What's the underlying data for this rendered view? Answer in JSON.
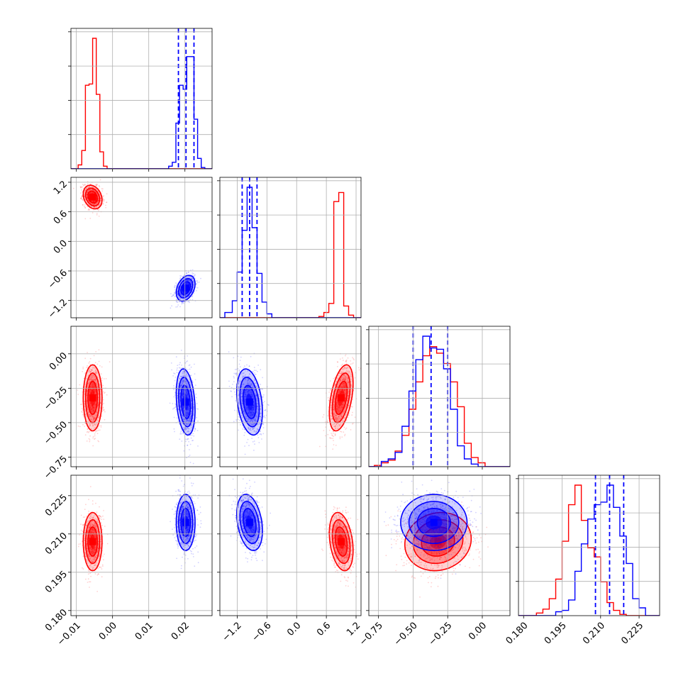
{
  "figure": {
    "type": "corner-plot"
  },
  "chart_data": {
    "type": "corner",
    "parameters": [
      {
        "key": "p1",
        "range": [
          -0.0115,
          0.0275
        ],
        "ticks": [
          -0.01,
          0.0,
          0.01,
          0.02
        ],
        "tick_labels": [
          "−0.01",
          "0.00",
          "0.01",
          "0.02"
        ]
      },
      {
        "key": "p2",
        "range": [
          -1.55,
          1.3
        ],
        "ticks": [
          -1.2,
          -0.6,
          0.0,
          0.6,
          1.2
        ],
        "tick_labels": [
          "−1.2",
          "−0.6",
          "0.0",
          "0.6",
          "1.2"
        ]
      },
      {
        "key": "p3",
        "range": [
          -0.82,
          0.2
        ],
        "ticks": [
          -0.75,
          -0.5,
          -0.25,
          0.0
        ],
        "tick_labels": [
          "−0.75",
          "−0.50",
          "−0.25",
          "0.00"
        ]
      },
      {
        "key": "p4",
        "range": [
          0.178,
          0.233
        ],
        "ticks": [
          0.18,
          0.195,
          0.21,
          0.225
        ],
        "tick_labels": [
          "0.180",
          "0.195",
          "0.210",
          "0.225"
        ]
      }
    ],
    "series": [
      {
        "color": "#ff0000",
        "mean": [
          -0.0055,
          0.9,
          -0.32,
          0.207
        ],
        "sd": [
          0.0013,
          0.12,
          0.12,
          0.0057
        ],
        "corr": [
          [
            0,
            1,
            -0.25
          ],
          [
            0,
            2,
            0
          ],
          [
            0,
            3,
            0
          ],
          [
            1,
            2,
            0.45
          ],
          [
            1,
            3,
            -0.3
          ],
          [
            2,
            3,
            0.1
          ]
        ],
        "histograms": [
          {
            "edges": [
              -0.0115,
              -0.0095,
              -0.0085,
              -0.0075,
              -0.0065,
              -0.0055,
              -0.0045,
              -0.0035,
              -0.0025,
              -0.0015,
              0.0275
            ],
            "counts": [
              0,
              0.03,
              0.14,
              0.64,
              0.65,
              1.0,
              0.57,
              0.13,
              0.02,
              0
            ]
          },
          {
            "edges": [
              -1.55,
              0.45,
              0.55,
              0.65,
              0.75,
              0.85,
              0.95,
              1.05,
              1.15,
              1.3
            ],
            "counts": [
              0,
              0.01,
              0.04,
              0.11,
              0.89,
              0.96,
              0.09,
              0.02,
              0
            ]
          },
          {
            "edges": [
              -0.82,
              -0.78,
              -0.73,
              -0.68,
              -0.63,
              -0.58,
              -0.53,
              -0.48,
              -0.43,
              -0.38,
              -0.33,
              -0.28,
              -0.23,
              -0.18,
              -0.13,
              -0.08,
              -0.03,
              0.02,
              0.2
            ],
            "counts": [
              0,
              0.01,
              0.03,
              0.05,
              0.12,
              0.24,
              0.44,
              0.65,
              0.85,
              0.92,
              0.87,
              0.79,
              0.65,
              0.46,
              0.18,
              0.07,
              0.03,
              0
            ]
          },
          {
            "edges": [
              0.178,
              0.185,
              0.1875,
              0.19,
              0.1925,
              0.195,
              0.1975,
              0.2,
              0.2025,
              0.205,
              0.2075,
              0.21,
              0.2125,
              0.215,
              0.2175,
              0.22,
              0.2225,
              0.233
            ],
            "counts": [
              0,
              0.02,
              0.05,
              0.13,
              0.28,
              0.57,
              0.85,
              1.0,
              0.73,
              0.52,
              0.45,
              0.26,
              0.1,
              0.04,
              0.01,
              0,
              0
            ]
          }
        ]
      },
      {
        "color": "#0000ff",
        "mean": [
          0.0202,
          -0.95,
          -0.35,
          0.2145
        ],
        "sd": [
          0.0013,
          0.13,
          0.12,
          0.0055
        ],
        "corr": [
          [
            0,
            1,
            0.35
          ],
          [
            0,
            2,
            -0.25
          ],
          [
            0,
            3,
            0
          ],
          [
            1,
            2,
            -0.3
          ],
          [
            1,
            3,
            -0.3
          ],
          [
            2,
            3,
            0
          ]
        ],
        "histograms": [
          {
            "edges": [
              -0.0115,
              0.0155,
              0.0165,
              0.0175,
              0.0185,
              0.0195,
              0.0205,
              0.0215,
              0.0225,
              0.0235,
              0.0245,
              0.0255,
              0.0275
            ],
            "counts": [
              0,
              0.02,
              0.05,
              0.35,
              0.64,
              0.61,
              0.86,
              0.86,
              0.38,
              0.08,
              0.01,
              0
            ]
          },
          {
            "edges": [
              -1.55,
              -1.45,
              -1.3,
              -1.2,
              -1.1,
              -1.0,
              -0.9,
              -0.8,
              -0.7,
              -0.6,
              -0.5,
              1.3
            ],
            "counts": [
              0,
              0.04,
              0.13,
              0.35,
              0.67,
              1.0,
              0.69,
              0.34,
              0.12,
              0.03,
              0
            ]
          },
          {
            "edges": [
              -0.82,
              -0.73,
              -0.68,
              -0.63,
              -0.58,
              -0.53,
              -0.48,
              -0.43,
              -0.38,
              -0.33,
              -0.28,
              -0.23,
              -0.18,
              -0.13,
              -0.08,
              -0.03,
              0.2
            ],
            "counts": [
              0,
              0.04,
              0.06,
              0.11,
              0.31,
              0.58,
              0.82,
              1.0,
              0.91,
              0.9,
              0.75,
              0.44,
              0.16,
              0.06,
              0.02,
              0
            ]
          },
          {
            "edges": [
              0.178,
              0.1925,
              0.195,
              0.1975,
              0.2,
              0.2025,
              0.205,
              0.2075,
              0.21,
              0.2125,
              0.215,
              0.2175,
              0.22,
              0.2225,
              0.225,
              0.2275,
              0.233
            ],
            "counts": [
              0,
              0.03,
              0.04,
              0.12,
              0.34,
              0.55,
              0.74,
              0.85,
              0.87,
              1.0,
              0.83,
              0.61,
              0.4,
              0.13,
              0.06,
              0
            ]
          }
        ]
      }
    ],
    "quantile_lines": {
      "color": "#0000ff",
      "style": "dashed",
      "values": [
        [
          0.0182,
          0.0203,
          0.0225
        ],
        [
          -1.1,
          -0.95,
          -0.8
        ],
        [
          -0.5,
          -0.37,
          -0.25
        ],
        [
          0.208,
          0.2135,
          0.219
        ]
      ]
    },
    "grid": true
  }
}
